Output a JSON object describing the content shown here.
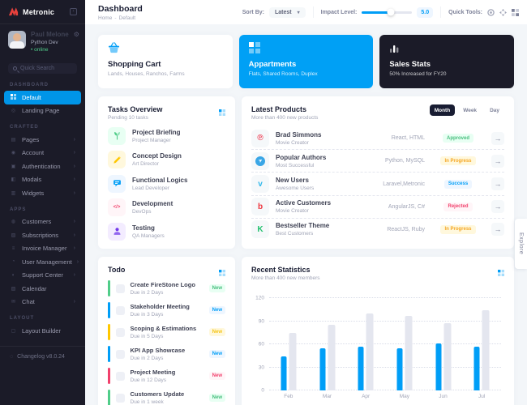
{
  "sidebar": {
    "logo_text": "Metronic",
    "user": {
      "name": "Paul Melone",
      "role": "Python Dev",
      "status": "online"
    },
    "search_placeholder": "Quick Search",
    "sections": [
      {
        "label": "DASHBOARD",
        "items": [
          {
            "label": "Default",
            "icon": "grid",
            "active": true
          },
          {
            "label": "Landing Page",
            "icon": "landing"
          }
        ]
      },
      {
        "label": "CRAFTED",
        "items": [
          {
            "label": "Pages",
            "icon": "pages",
            "arrow": true
          },
          {
            "label": "Account",
            "icon": "account",
            "arrow": true
          },
          {
            "label": "Authentication",
            "icon": "auth",
            "arrow": true
          },
          {
            "label": "Modals",
            "icon": "modals",
            "arrow": true
          },
          {
            "label": "Widgets",
            "icon": "widgets",
            "arrow": true
          }
        ]
      },
      {
        "label": "APPS",
        "items": [
          {
            "label": "Customers",
            "icon": "customers",
            "arrow": true
          },
          {
            "label": "Subscriptions",
            "icon": "subscriptions",
            "arrow": true
          },
          {
            "label": "Invoice Manager",
            "icon": "invoice",
            "arrow": true
          },
          {
            "label": "User Management",
            "icon": "users",
            "arrow": true
          },
          {
            "label": "Support Center",
            "icon": "support",
            "arrow": true
          },
          {
            "label": "Calendar",
            "icon": "calendar"
          },
          {
            "label": "Chat",
            "icon": "chat",
            "arrow": true
          }
        ]
      },
      {
        "label": "LAYOUT",
        "items": [
          {
            "label": "Layout Builder",
            "icon": "layout"
          }
        ]
      }
    ],
    "changelog": "Changelog v8.0.24"
  },
  "header": {
    "title": "Dashboard",
    "breadcrumb": {
      "home": "Home",
      "current": "Default"
    },
    "sort_label": "Sort By:",
    "sort_value": "Latest",
    "impact_label": "Impact Level:",
    "impact_value": "5.0",
    "quick_tools_label": "Quick Tools:"
  },
  "stat_cards": [
    {
      "title": "Shopping Cart",
      "subtitle": "Lands, Houses, Ranchos, Farms",
      "style": "light",
      "icon": "basket"
    },
    {
      "title": "Appartments",
      "subtitle": "Flats, Shared Rooms, Duplex",
      "style": "primary",
      "icon": "squares"
    },
    {
      "title": "Sales Stats",
      "subtitle": "50% Increased for FY20",
      "style": "dark",
      "icon": "bars"
    }
  ],
  "tasks_overview": {
    "title": "Tasks Overview",
    "subtitle": "Pending 10 tasks",
    "items": [
      {
        "title": "Project Briefing",
        "subtitle": "Project Manager",
        "color": "green",
        "icon": "plant"
      },
      {
        "title": "Concept Design",
        "subtitle": "Art Director",
        "color": "yellow",
        "icon": "pencil"
      },
      {
        "title": "Functional Logics",
        "subtitle": "Lead Developer",
        "color": "blue",
        "icon": "chat"
      },
      {
        "title": "Development",
        "subtitle": "DevOps",
        "color": "red",
        "icon": "code"
      },
      {
        "title": "Testing",
        "subtitle": "QA Managers",
        "color": "purple",
        "icon": "user"
      }
    ]
  },
  "latest_products": {
    "title": "Latest Products",
    "subtitle": "More than 400 new products",
    "filters": [
      "Month",
      "Week",
      "Day"
    ],
    "active_filter": "Month",
    "rows": [
      {
        "name": "Brad Simmons",
        "role": "Movie Creator",
        "tags": "React, HTML",
        "status": "Approved",
        "status_color": "green",
        "logo": "producthunt"
      },
      {
        "name": "Popular Authors",
        "role": "Most Successful",
        "tags": "Python, MySQL",
        "status": "In Progress",
        "status_color": "orange",
        "logo": "telegram"
      },
      {
        "name": "New Users",
        "role": "Awesome Users",
        "tags": "Laravel,Metronic",
        "status": "Success",
        "status_color": "blue",
        "logo": "vimeo"
      },
      {
        "name": "Active Customers",
        "role": "Movie Creator",
        "tags": "AngularJS, C#",
        "status": "Rejected",
        "status_color": "red",
        "logo": "bebo"
      },
      {
        "name": "Bestseller Theme",
        "role": "Best Customers",
        "tags": "ReactJS, Ruby",
        "status": "In Progress",
        "status_color": "orange",
        "logo": "kickstarter"
      }
    ]
  },
  "todo": {
    "title": "Todo",
    "items": [
      {
        "title": "Create FireStone Logo",
        "due": "Due in 2 Days",
        "badge": "New",
        "color": "green"
      },
      {
        "title": "Stakeholder Meeting",
        "due": "Due in 3 Days",
        "badge": "New",
        "color": "blue"
      },
      {
        "title": "Scoping & Estimations",
        "due": "Due in 5 Days",
        "badge": "New",
        "color": "yellow"
      },
      {
        "title": "KPI App Showcase",
        "due": "Due in 2 Days",
        "badge": "New",
        "color": "blue"
      },
      {
        "title": "Project Meeting",
        "due": "Due in 12 Days",
        "badge": "New",
        "color": "red"
      },
      {
        "title": "Customers Update",
        "due": "Due in 1 week",
        "badge": "New",
        "color": "green"
      }
    ]
  },
  "chart_data": {
    "type": "bar",
    "title": "Recent Statistics",
    "subtitle": "More than 400 new members",
    "categories": [
      "Feb",
      "Mar",
      "Apr",
      "May",
      "Jun",
      "Jul"
    ],
    "series": [
      {
        "name": "Active",
        "color": "#009ef7",
        "values": [
          44,
          55,
          57,
          55,
          61,
          57
        ]
      },
      {
        "name": "Inactive",
        "color": "#e4e6ef",
        "values": [
          75,
          85,
          100,
          97,
          87,
          104
        ]
      }
    ],
    "ylim": [
      0,
      120
    ],
    "yticks": [
      0,
      30,
      60,
      90,
      120
    ],
    "grid": "dashed-horizontal",
    "legend": "none"
  },
  "explore_label": "Explore"
}
